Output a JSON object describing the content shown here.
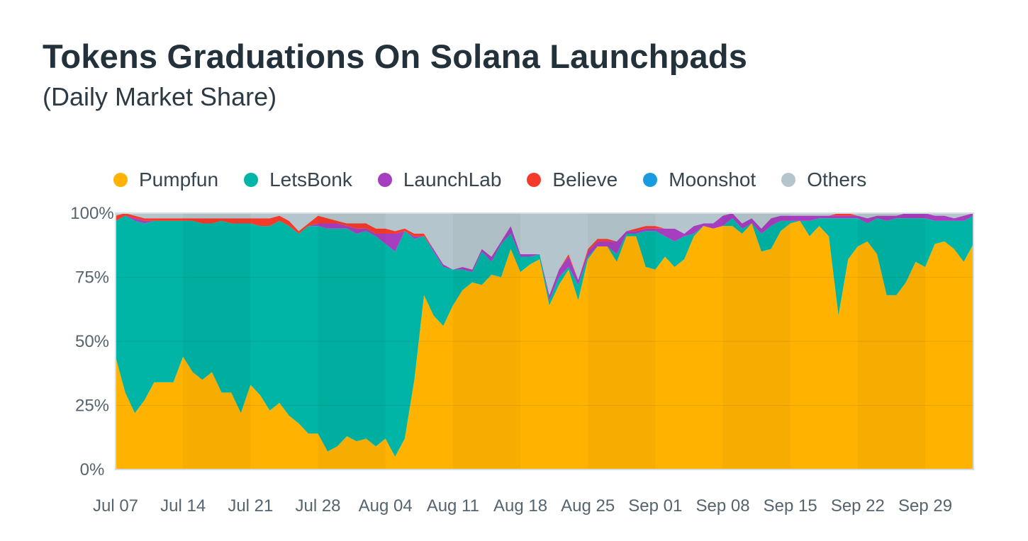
{
  "chart_data": {
    "type": "area",
    "stacked": true,
    "normalized": true,
    "title": "Tokens Graduations On Solana Launchpads",
    "subtitle": "(Daily Market Share)",
    "xlabel": "",
    "ylabel": "",
    "ylim": [
      0,
      100
    ],
    "y_ticks": [
      "0%",
      "25%",
      "50%",
      "75%",
      "100%"
    ],
    "y_tick_values": [
      0,
      25,
      50,
      75,
      100
    ],
    "x_ticks": [
      "Jul 07",
      "Jul 14",
      "Jul 21",
      "Jul 28",
      "Aug 04",
      "Aug 11",
      "Aug 18",
      "Aug 25",
      "Sep 01",
      "Sep 08",
      "Sep 15",
      "Sep 22",
      "Sep 29"
    ],
    "x_range": [
      "Jul 07",
      "Sep 30"
    ],
    "legend_position": "top",
    "grid": true,
    "pumpfun": [
      44,
      30,
      22,
      27,
      34,
      34,
      34,
      44,
      38,
      35,
      38,
      30,
      30,
      22,
      33,
      29,
      23,
      26,
      21,
      18,
      14,
      14,
      7,
      9,
      13,
      11,
      12,
      9,
      12,
      5,
      12,
      35,
      68,
      60,
      56,
      64,
      70,
      73,
      72,
      76,
      75,
      86,
      77,
      80,
      82,
      64,
      72,
      78,
      66,
      82,
      87,
      87,
      81,
      91,
      91,
      79,
      78,
      83,
      79,
      82,
      91,
      95,
      94,
      95,
      95,
      92,
      96,
      85,
      86,
      93,
      96,
      97,
      91,
      95,
      91,
      60,
      82,
      87,
      89,
      84,
      68,
      68,
      73,
      81,
      79,
      88,
      89,
      86,
      81,
      88
    ],
    "letsbonk": [
      53,
      69,
      75,
      69,
      63,
      63,
      63,
      53,
      59,
      61,
      58,
      67,
      66,
      74,
      63,
      66,
      72,
      71,
      74,
      74,
      81,
      81,
      87,
      85,
      81,
      81,
      81,
      82,
      76,
      80,
      81,
      55,
      23,
      25,
      23,
      14,
      8,
      4,
      13,
      5,
      13,
      6,
      6,
      3,
      2,
      2,
      3,
      1,
      6,
      1,
      0,
      0,
      3,
      1,
      1,
      14,
      15,
      8,
      10,
      9,
      1,
      0,
      0,
      0,
      3,
      2,
      0,
      7,
      9,
      4,
      1,
      0,
      6,
      3,
      7,
      38,
      16,
      11,
      7,
      14,
      29,
      30,
      25,
      17,
      19,
      9,
      8,
      11,
      16,
      11
    ],
    "launchlab": [
      0,
      0,
      1,
      1,
      0,
      0,
      0,
      0,
      0,
      0,
      0,
      0,
      0,
      0,
      0,
      0,
      0,
      0,
      0,
      0,
      0,
      1,
      2,
      2,
      1,
      2,
      1,
      1,
      4,
      7,
      0,
      1,
      0,
      1,
      1,
      0,
      1,
      1,
      1,
      2,
      1,
      3,
      1,
      1,
      0,
      2,
      3,
      4,
      2,
      2,
      2,
      2,
      5,
      1,
      1,
      1,
      1,
      3,
      5,
      1,
      3,
      1,
      2,
      4,
      2,
      2,
      2,
      2,
      3,
      2,
      2,
      2,
      2,
      1,
      1,
      1,
      1,
      1,
      2,
      1,
      2,
      1,
      2,
      2,
      2,
      2,
      2,
      1,
      2,
      1
    ],
    "believe": [
      2,
      1,
      1,
      1,
      1,
      1,
      1,
      1,
      1,
      2,
      2,
      1,
      2,
      2,
      2,
      3,
      3,
      2,
      2,
      1,
      1,
      3,
      2,
      1,
      1,
      2,
      2,
      2,
      2,
      1,
      1,
      1,
      1,
      0,
      0,
      0,
      0,
      0,
      0,
      0,
      0,
      0,
      0,
      0,
      0,
      0,
      0,
      1,
      0,
      1,
      1,
      1,
      0,
      0,
      1,
      1,
      1,
      0,
      0,
      0,
      0,
      0,
      0,
      0,
      0,
      0,
      0,
      0,
      0,
      0,
      0,
      0,
      0,
      0,
      0,
      1,
      1,
      0,
      0,
      0,
      0,
      0,
      0,
      0,
      0,
      0,
      0,
      0,
      0,
      0
    ],
    "moonshot": [
      0,
      0,
      0,
      0,
      0,
      0,
      0,
      0,
      0,
      0,
      0,
      0,
      0,
      0,
      0,
      0,
      0,
      0,
      0,
      0,
      0,
      0,
      0,
      0,
      0,
      0,
      0,
      0,
      0,
      0,
      0,
      0,
      0,
      0,
      0,
      0,
      0,
      0,
      0,
      0,
      0,
      0,
      0,
      0,
      0,
      0,
      0,
      0,
      0,
      0,
      0,
      0,
      0,
      0,
      0,
      0,
      0,
      0,
      0,
      0,
      0,
      0,
      0,
      0,
      0,
      0,
      0,
      0,
      0,
      0,
      0,
      0,
      0,
      0,
      0,
      0,
      0,
      0,
      0,
      0,
      0,
      0,
      0,
      0,
      0,
      0,
      0,
      0,
      0,
      0
    ],
    "series": [
      {
        "name": "Pumpfun",
        "color": "#ffb300",
        "key": "pumpfun"
      },
      {
        "name": "LetsBonk",
        "color": "#00b5a5",
        "key": "letsbonk"
      },
      {
        "name": "LaunchLab",
        "color": "#a63fbf",
        "key": "launchlab"
      },
      {
        "name": "Believe",
        "color": "#f43b2b",
        "key": "believe"
      },
      {
        "name": "Moonshot",
        "color": "#1a9be0",
        "key": "moonshot"
      },
      {
        "name": "Others",
        "color": "#b4c5cd",
        "key": "others"
      }
    ]
  }
}
